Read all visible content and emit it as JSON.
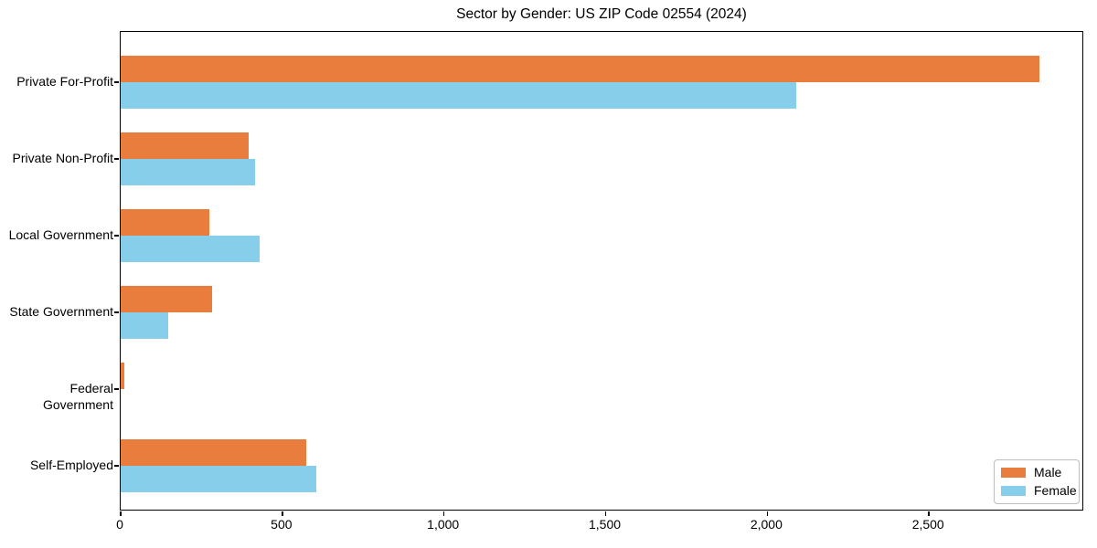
{
  "chart_data": {
    "type": "bar",
    "orientation": "horizontal",
    "title": "Sector by Gender: US ZIP Code 02554 (2024)",
    "categories": [
      "Private For-Profit",
      "Private Non-Profit",
      "Local Government",
      "State Government",
      "Federal Government",
      "Self-Employed"
    ],
    "series": [
      {
        "name": "Male",
        "color": "#e87d3e",
        "values": [
          2840,
          396,
          275,
          282,
          10,
          575
        ]
      },
      {
        "name": "Female",
        "color": "#87ceeb",
        "values": [
          2088,
          415,
          429,
          146,
          0,
          606
        ]
      }
    ],
    "xlabel": "",
    "ylabel": "",
    "xlim": [
      0,
      2980
    ],
    "xticks": [
      0,
      500,
      1000,
      1500,
      2000,
      2500
    ],
    "xtick_labels": [
      "0",
      "500",
      "1,000",
      "1,500",
      "2,000",
      "2,500"
    ],
    "grid": false,
    "legend_position": "lower right"
  },
  "colors": {
    "male": "#e87d3e",
    "female": "#87ceeb",
    "spine": "#000000",
    "legend_border": "#bdbdbd",
    "background": "#ffffff"
  }
}
